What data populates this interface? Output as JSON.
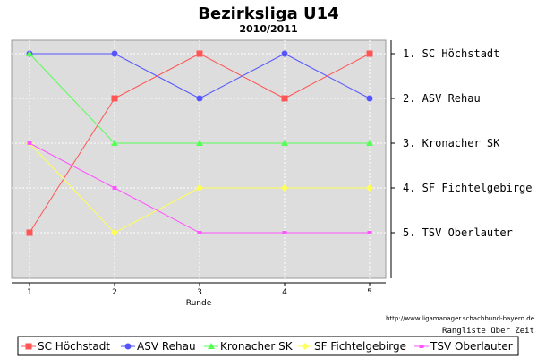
{
  "chart_data": {
    "type": "line",
    "title": "Bezirksliga U14",
    "subtitle": "2010/2011",
    "xlabel": "Runde",
    "x": [
      1,
      2,
      3,
      4,
      5
    ],
    "y_inverted": true,
    "ylim": [
      5.9,
      0.7
    ],
    "grid": true,
    "legend_position": "bottom",
    "rank_labels": [
      "1. SC Höchstadt",
      "2. ASV Rehau",
      "3. Kronacher SK",
      "4. SF Fichtelgebirge",
      "5. TSV Oberlauter"
    ],
    "series": [
      {
        "name": "SC Höchstadt",
        "color": "#ff5555",
        "marker": "square",
        "values": [
          5,
          2,
          1,
          2,
          1
        ]
      },
      {
        "name": "ASV Rehau",
        "color": "#5555ff",
        "marker": "circle",
        "values": [
          1,
          1,
          2,
          1,
          2
        ]
      },
      {
        "name": "Kronacher SK",
        "color": "#55ff55",
        "marker": "triangle",
        "values": [
          1,
          3,
          3,
          3,
          3
        ]
      },
      {
        "name": "SF Fichtelgebirge",
        "color": "#ffff55",
        "marker": "diamond",
        "values": [
          3,
          5,
          4,
          4,
          4
        ]
      },
      {
        "name": "TSV Oberlauter",
        "color": "#ff55ff",
        "marker": "small-square",
        "values": [
          3,
          4,
          5,
          5,
          5
        ]
      }
    ]
  },
  "footer": {
    "url": "http://www.ligamanager.schachbund-bayern.de",
    "caption": "Rangliste über Zeit"
  }
}
